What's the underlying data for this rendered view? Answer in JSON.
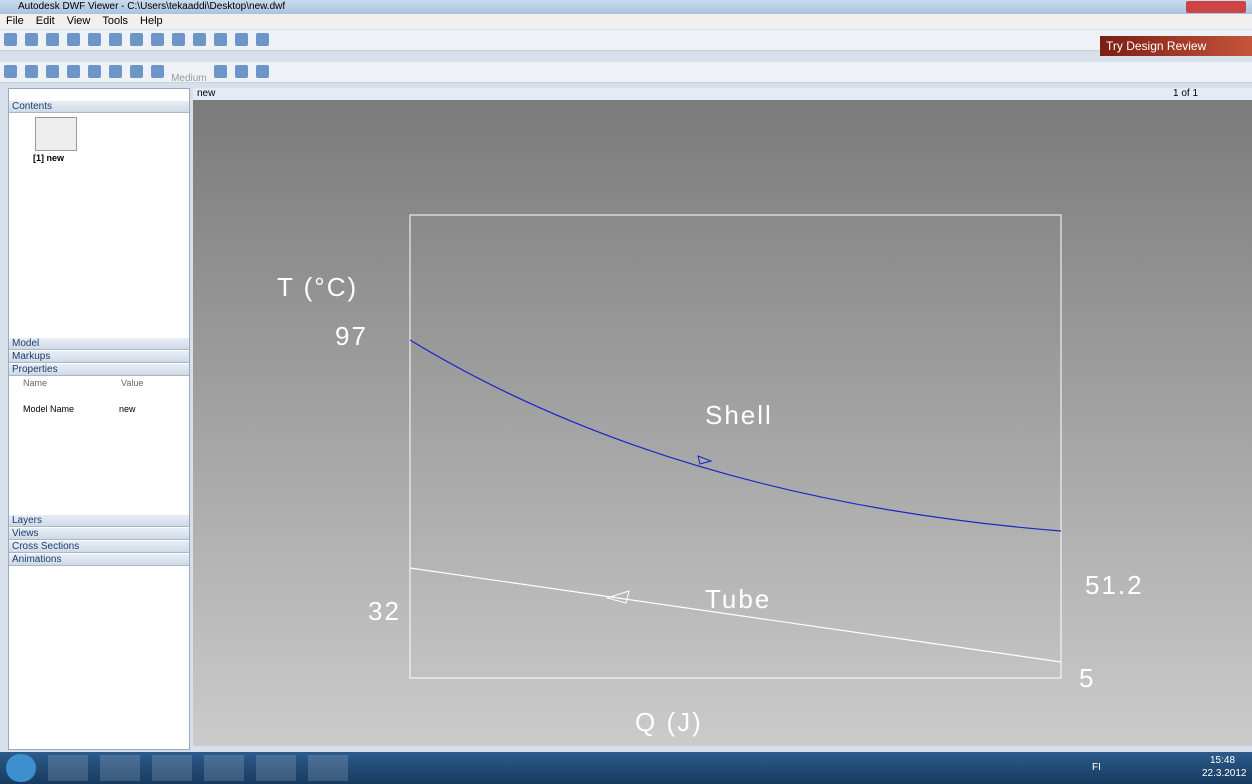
{
  "window": {
    "title": "Autodesk DWF Viewer - C:\\Users\\tekaaddi\\Desktop\\new.dwf"
  },
  "menu": [
    "File",
    "Edit",
    "View",
    "Tools",
    "Help"
  ],
  "toolbar": {
    "promo": "Try Design Review",
    "quality": "Medium"
  },
  "tab": {
    "title": "new",
    "page": "1 of 1"
  },
  "sidebar": {
    "contents": "Contents",
    "thumbnail": "[1] new",
    "model": "Model",
    "markups": "Markups",
    "properties": "Properties",
    "columns": [
      "Name",
      "Value"
    ],
    "property_rows": [
      [
        "Model Name",
        "new"
      ]
    ],
    "sections": [
      "Layers",
      "Views",
      "Cross Sections",
      "Animations"
    ]
  },
  "drawing": {
    "y_label": "T (°C)",
    "x_label": "Q (J)",
    "shell_label": "Shell",
    "tube_label": "Tube",
    "shell_in": "97",
    "shell_out": "51.2",
    "tube_out": "32",
    "tube_in": "5"
  },
  "taskbar": {
    "lang": "FI",
    "time": "15:48",
    "date": "22.3.2012"
  }
}
